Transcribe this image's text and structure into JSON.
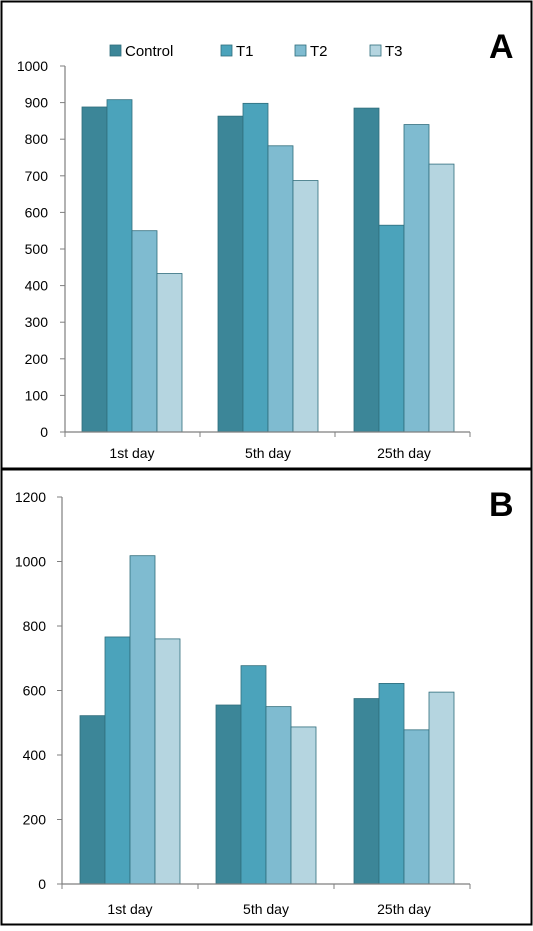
{
  "colors": {
    "control": "#3c8698",
    "t1": "#4ba3bb",
    "t2": "#7fbbd0",
    "t3": "#b5d5e0",
    "axis": "#7f7f7f",
    "frame": "#000000"
  },
  "legend": [
    "Control",
    "T1",
    "T2",
    "T3"
  ],
  "chart_data": [
    {
      "type": "bar",
      "panel_label": "A",
      "categories": [
        "1st day",
        "5th day",
        "25th day"
      ],
      "series": [
        {
          "name": "Control",
          "values": [
            888,
            863,
            885
          ]
        },
        {
          "name": "T1",
          "values": [
            908,
            898,
            565
          ]
        },
        {
          "name": "T2",
          "values": [
            550,
            782,
            840
          ]
        },
        {
          "name": "T3",
          "values": [
            433,
            687,
            732
          ]
        }
      ],
      "ylim": [
        0,
        1000
      ],
      "yticks": [
        0,
        100,
        200,
        300,
        400,
        500,
        600,
        700,
        800,
        900,
        1000
      ],
      "legend_position": "top",
      "grid": false
    },
    {
      "type": "bar",
      "panel_label": "B",
      "categories": [
        "1st day",
        "5th day",
        "25th day"
      ],
      "series": [
        {
          "name": "Control",
          "values": [
            522,
            555,
            575
          ]
        },
        {
          "name": "T1",
          "values": [
            766,
            677,
            622
          ]
        },
        {
          "name": "T2",
          "values": [
            1018,
            550,
            478
          ]
        },
        {
          "name": "T3",
          "values": [
            760,
            487,
            595
          ]
        }
      ],
      "ylim": [
        0,
        1200
      ],
      "yticks": [
        0,
        200,
        400,
        600,
        800,
        1000,
        1200
      ],
      "grid": false
    }
  ]
}
